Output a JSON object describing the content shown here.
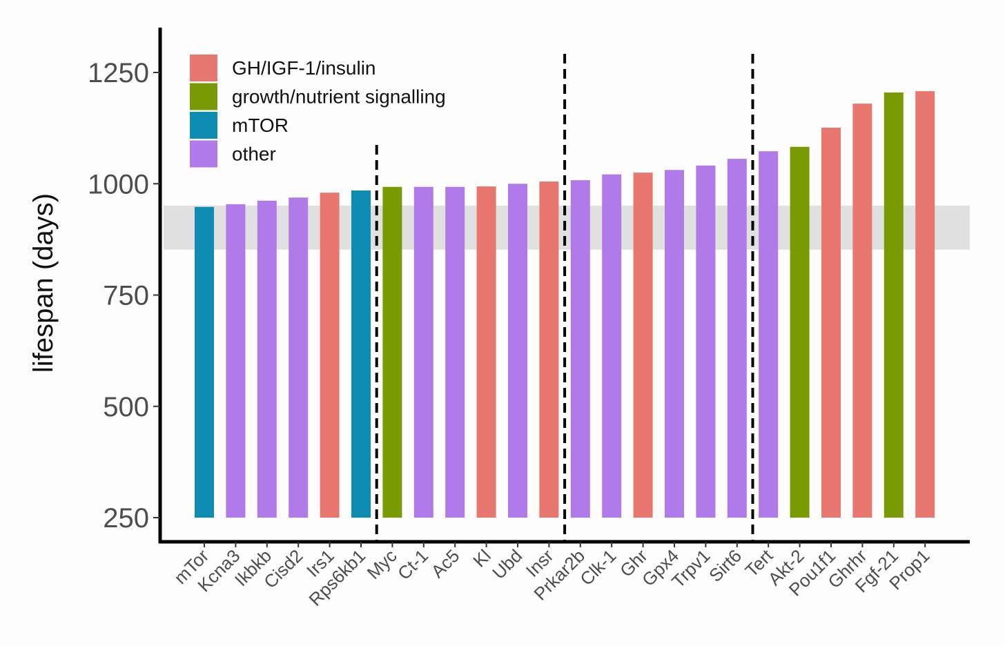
{
  "chart_data": {
    "type": "bar",
    "title": "",
    "xlabel": "",
    "ylabel": "lifespan (days)",
    "ylim": [
      250,
      1300
    ],
    "yticks": [
      250,
      500,
      750,
      1000,
      1250
    ],
    "ytick_labels": [
      "250",
      "500",
      "750",
      "1000",
      "1250"
    ],
    "baseline": 250,
    "grid": false,
    "legend_position": "top-left",
    "legend": [
      {
        "key": "gh",
        "label": "GH/IGF-1/insulin",
        "color": "#E8786F"
      },
      {
        "key": "growth",
        "label": "growth/nutrient signalling",
        "color": "#7A9A01"
      },
      {
        "key": "mtor",
        "label": "mTOR",
        "color": "#0F8CB2"
      },
      {
        "key": "other",
        "label": "other",
        "color": "#B07BE8"
      }
    ],
    "reference_band": [
      852,
      951
    ],
    "reference_band_color": "#e0e0e0",
    "group_dividers_after": [
      "Rps6kb1",
      "Insr",
      "Sirt6"
    ],
    "categories": [
      "mTor",
      "Kcna3",
      "Ikbkb",
      "Cisd2",
      "Irs1",
      "Rps6kb1",
      "Myc",
      "Ct-1",
      "Ac5",
      "Kl",
      "Ubd",
      "Insr",
      "Prkar2b",
      "Clk-1",
      "Ghr",
      "Gpx4",
      "Trpv1",
      "Sirt6",
      "Tert",
      "Akt-2",
      "Pou1f1",
      "Ghrhr",
      "Fgf-21",
      "Prop1"
    ],
    "values": [
      948,
      954,
      962,
      969,
      980,
      985,
      993,
      993,
      993,
      994,
      1000,
      1005,
      1008,
      1021,
      1025,
      1031,
      1041,
      1056,
      1073,
      1083,
      1126,
      1180,
      1205,
      1208
    ],
    "groups": [
      "mtor",
      "other",
      "other",
      "other",
      "gh",
      "mtor",
      "growth",
      "other",
      "other",
      "gh",
      "other",
      "gh",
      "other",
      "other",
      "gh",
      "other",
      "other",
      "other",
      "other",
      "growth",
      "gh",
      "gh",
      "growth",
      "gh"
    ]
  }
}
